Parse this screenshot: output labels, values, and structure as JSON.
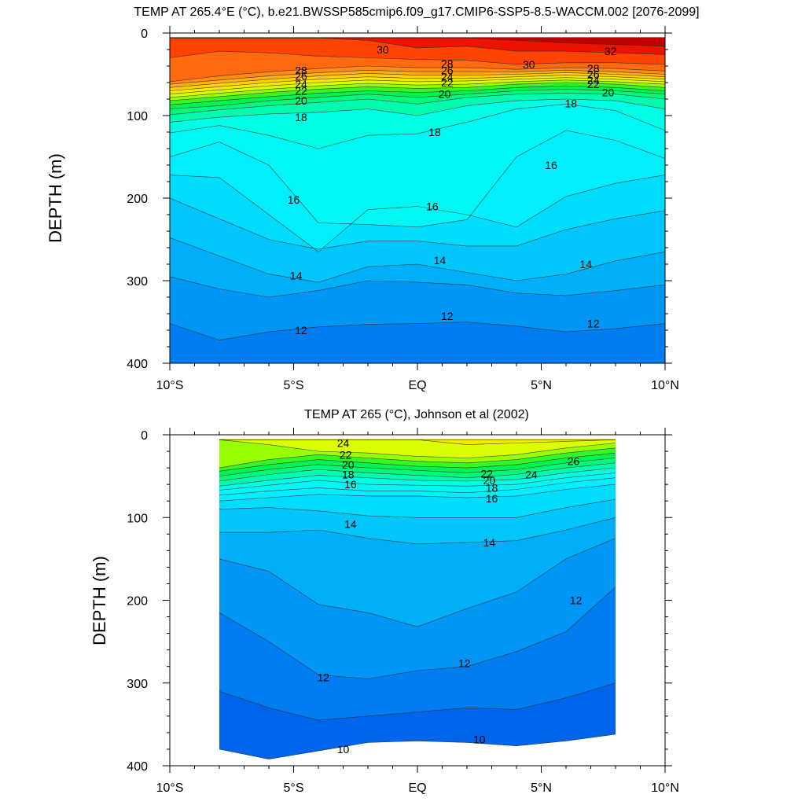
{
  "panels": [
    {
      "title": "TEMP AT 265.4°E (°C), b.e21.BWSSP585cmip6.f09_g17.CMIP6-SSP5-8.5-WACCM.002 [2076-2099]",
      "ylabel": "DEPTH (m)"
    },
    {
      "title": "TEMP AT 265 (°C), Johnson et al (2002)",
      "ylabel": "DEPTH (m)"
    }
  ],
  "chart_data": [
    {
      "type": "contour",
      "title": "TEMP AT 265.4°E (°C), b.e21.BWSSP585cmip6.f09_g17.CMIP6-SSP5-8.5-WACCM.002 [2076-2099]",
      "xlabel": "",
      "ylabel": "DEPTH (m)",
      "x_ticks": [
        "10°S",
        "5°S",
        "EQ",
        "5°N",
        "10°N"
      ],
      "x_tick_values": [
        -10,
        -5,
        0,
        5,
        10
      ],
      "y_ticks": [
        "0",
        "100",
        "200",
        "300",
        "400"
      ],
      "y_tick_values": [
        0,
        100,
        200,
        300,
        400
      ],
      "xlim": [
        -10,
        10
      ],
      "ylim": [
        400,
        0
      ],
      "y_reversed": true,
      "data_extent_x": [
        -10,
        10
      ],
      "data_extent_y": [
        400,
        5
      ],
      "contour_interval": 1,
      "contour_levels": [
        11,
        12,
        13,
        14,
        15,
        16,
        17,
        18,
        19,
        20,
        21,
        22,
        23,
        24,
        25,
        26,
        27,
        28,
        29,
        30,
        31,
        32
      ],
      "x_nodes": [
        -10,
        -8,
        -6,
        -4,
        -2,
        0,
        2,
        4,
        6,
        8,
        10
      ],
      "isotherm_depths": [
        {
          "level": 11,
          "depths": [
            402,
            402,
            402,
            402,
            402,
            402,
            402,
            402,
            402,
            402,
            402
          ]
        },
        {
          "level": 12,
          "depths": [
            352,
            372,
            362,
            356,
            353,
            352,
            350,
            355,
            362,
            358,
            352
          ]
        },
        {
          "level": 13,
          "depths": [
            295,
            310,
            320,
            312,
            300,
            302,
            305,
            315,
            318,
            312,
            305
          ]
        },
        {
          "level": 14,
          "depths": [
            248,
            270,
            292,
            302,
            283,
            280,
            290,
            300,
            292,
            276,
            265
          ]
        },
        {
          "level": 15,
          "depths": [
            200,
            225,
            250,
            262,
            252,
            252,
            258,
            258,
            238,
            225,
            215
          ]
        },
        {
          "level": 16,
          "depths": [
            172,
            175,
            220,
            265,
            214,
            210,
            220,
            235,
            198,
            182,
            172
          ]
        },
        {
          "level": 17,
          "depths": [
            150,
            132,
            160,
            230,
            232,
            235,
            226,
            150,
            118,
            130,
            152
          ]
        },
        {
          "level": 18,
          "depths": [
            121,
            112,
            124,
            140,
            124,
            122,
            108,
            92,
            86,
            94,
            118
          ]
        },
        {
          "level": 19,
          "depths": [
            108,
            102,
            98,
            96,
            92,
            100,
            88,
            82,
            80,
            82,
            92
          ]
        },
        {
          "level": 20,
          "depths": [
            99,
            93,
            88,
            84,
            80,
            86,
            78,
            74,
            73,
            74,
            80
          ]
        },
        {
          "level": 21,
          "depths": [
            92,
            88,
            82,
            78,
            74,
            78,
            74,
            70,
            68,
            70,
            74
          ]
        },
        {
          "level": 22,
          "depths": [
            87,
            82,
            77,
            73,
            70,
            72,
            70,
            66,
            64,
            66,
            70
          ]
        },
        {
          "level": 23,
          "depths": [
            82,
            77,
            72,
            68,
            65,
            67,
            66,
            62,
            60,
            62,
            66
          ]
        },
        {
          "level": 24,
          "depths": [
            78,
            73,
            68,
            64,
            61,
            63,
            62,
            59,
            57,
            59,
            62
          ]
        },
        {
          "level": 25,
          "depths": [
            74,
            69,
            64,
            60,
            57,
            59,
            58,
            56,
            54,
            56,
            59
          ]
        },
        {
          "level": 26,
          "depths": [
            70,
            65,
            60,
            56,
            53,
            55,
            55,
            53,
            51,
            53,
            56
          ]
        },
        {
          "level": 27,
          "depths": [
            66,
            61,
            56,
            52,
            49,
            51,
            51,
            50,
            48,
            50,
            53
          ]
        },
        {
          "level": 28,
          "depths": [
            62,
            57,
            52,
            48,
            45,
            47,
            47,
            47,
            45,
            47,
            50
          ]
        },
        {
          "level": 29,
          "depths": [
            59,
            52,
            47,
            43,
            40,
            42,
            42,
            44,
            42,
            43,
            46
          ]
        },
        {
          "level": 30,
          "depths": [
            30,
            22,
            24,
            28,
            30,
            32,
            33,
            38,
            36,
            36,
            38
          ]
        },
        {
          "level": 31,
          "depths": [
            6,
            6,
            6,
            6,
            9,
            18,
            16,
            22,
            22,
            24,
            26
          ]
        },
        {
          "level": 32,
          "depths": [
            6,
            6,
            6,
            6,
            6,
            6,
            6,
            9,
            12,
            14,
            16
          ]
        }
      ],
      "contour_labels": [
        {
          "text": "30",
          "x": -1.4,
          "y": 20
        },
        {
          "text": "32",
          "x": 7.8,
          "y": 22
        },
        {
          "text": "28",
          "x": -4.7,
          "y": 45
        },
        {
          "text": "26",
          "x": -4.7,
          "y": 52
        },
        {
          "text": "24",
          "x": -4.7,
          "y": 62
        },
        {
          "text": "22",
          "x": -4.7,
          "y": 70
        },
        {
          "text": "20",
          "x": -4.7,
          "y": 82
        },
        {
          "text": "28",
          "x": 1.2,
          "y": 37
        },
        {
          "text": "26",
          "x": 1.2,
          "y": 45
        },
        {
          "text": "24",
          "x": 1.2,
          "y": 53
        },
        {
          "text": "22",
          "x": 1.2,
          "y": 60
        },
        {
          "text": "20",
          "x": 1.1,
          "y": 74
        },
        {
          "text": "30",
          "x": 4.5,
          "y": 38
        },
        {
          "text": "28",
          "x": 7.1,
          "y": 43
        },
        {
          "text": "26",
          "x": 7.1,
          "y": 50
        },
        {
          "text": "24",
          "x": 7.1,
          "y": 57
        },
        {
          "text": "22",
          "x": 7.1,
          "y": 62
        },
        {
          "text": "20",
          "x": 7.7,
          "y": 72
        },
        {
          "text": "18",
          "x": 6.2,
          "y": 85
        },
        {
          "text": "18",
          "x": -4.7,
          "y": 102
        },
        {
          "text": "18",
          "x": 0.7,
          "y": 120
        },
        {
          "text": "16",
          "x": 5.4,
          "y": 160
        },
        {
          "text": "16",
          "x": -5.0,
          "y": 202
        },
        {
          "text": "16",
          "x": 0.6,
          "y": 210
        },
        {
          "text": "14",
          "x": 0.9,
          "y": 275
        },
        {
          "text": "14",
          "x": -4.9,
          "y": 294
        },
        {
          "text": "14",
          "x": 6.8,
          "y": 280
        },
        {
          "text": "12",
          "x": -4.7,
          "y": 360
        },
        {
          "text": "12",
          "x": 1.2,
          "y": 343
        },
        {
          "text": "12",
          "x": 7.1,
          "y": 352
        }
      ]
    },
    {
      "type": "contour",
      "title": "TEMP AT 265 (°C), Johnson et al (2002)",
      "xlabel": "",
      "ylabel": "DEPTH (m)",
      "x_ticks": [
        "10°S",
        "5°S",
        "EQ",
        "5°N",
        "10°N"
      ],
      "x_tick_values": [
        -10,
        -5,
        0,
        5,
        10
      ],
      "y_ticks": [
        "0",
        "100",
        "200",
        "300",
        "400"
      ],
      "y_tick_values": [
        0,
        100,
        200,
        300,
        400
      ],
      "xlim": [
        -10,
        10
      ],
      "ylim": [
        400,
        0
      ],
      "y_reversed": true,
      "data_extent_x": [
        -8,
        8
      ],
      "data_extent_y": [
        400,
        5
      ],
      "contour_interval": 1,
      "contour_levels": [
        10,
        11,
        12,
        13,
        14,
        15,
        16,
        17,
        18,
        19,
        20,
        21,
        22,
        23,
        24,
        25,
        26
      ],
      "x_nodes": [
        -8,
        -6,
        -4,
        -2,
        0,
        2,
        4,
        6,
        8
      ],
      "isotherm_depths": [
        {
          "level": 10,
          "depths": [
            380,
            392,
            382,
            372,
            370,
            372,
            376,
            370,
            362
          ]
        },
        {
          "level": 11,
          "depths": [
            310,
            330,
            345,
            340,
            335,
            330,
            332,
            318,
            300
          ]
        },
        {
          "level": 12,
          "depths": [
            215,
            250,
            290,
            295,
            285,
            280,
            262,
            238,
            184
          ]
        },
        {
          "level": 13,
          "depths": [
            150,
            165,
            205,
            215,
            232,
            210,
            190,
            150,
            125
          ]
        },
        {
          "level": 14,
          "depths": [
            118,
            118,
            115,
            125,
            132,
            130,
            128,
            115,
            100
          ]
        },
        {
          "level": 15,
          "depths": [
            90,
            88,
            92,
            98,
            100,
            100,
            100,
            88,
            78
          ]
        },
        {
          "level": 16,
          "depths": [
            80,
            76,
            72,
            74,
            74,
            76,
            74,
            66,
            60
          ]
        },
        {
          "level": 17,
          "depths": [
            73,
            68,
            64,
            68,
            68,
            70,
            66,
            58,
            52
          ]
        },
        {
          "level": 18,
          "depths": [
            67,
            61,
            55,
            60,
            61,
            62,
            60,
            52,
            46
          ]
        },
        {
          "level": 19,
          "depths": [
            62,
            55,
            49,
            52,
            55,
            56,
            54,
            46,
            40
          ]
        },
        {
          "level": 20,
          "depths": [
            56,
            48,
            42,
            46,
            49,
            52,
            48,
            40,
            34
          ]
        },
        {
          "level": 21,
          "depths": [
            50,
            42,
            36,
            40,
            43,
            46,
            42,
            34,
            28
          ]
        },
        {
          "level": 22,
          "depths": [
            44,
            36,
            30,
            34,
            38,
            40,
            36,
            28,
            22
          ]
        },
        {
          "level": 23,
          "depths": [
            40,
            30,
            24,
            28,
            32,
            34,
            30,
            22,
            16
          ]
        },
        {
          "level": 24,
          "depths": [
            6,
            12,
            20,
            22,
            26,
            28,
            24,
            16,
            10
          ]
        },
        {
          "level": 25,
          "depths": [
            6,
            6,
            6,
            6,
            6,
            12,
            10,
            8,
            6
          ]
        },
        {
          "level": 26,
          "depths": [
            6,
            6,
            6,
            6,
            6,
            6,
            6,
            6,
            6
          ]
        }
      ],
      "contour_labels": [
        {
          "text": "24",
          "x": -3.0,
          "y": 10
        },
        {
          "text": "22",
          "x": -2.9,
          "y": 24
        },
        {
          "text": "20",
          "x": -2.8,
          "y": 36
        },
        {
          "text": "18",
          "x": -2.8,
          "y": 48
        },
        {
          "text": "16",
          "x": -2.7,
          "y": 60
        },
        {
          "text": "22",
          "x": 2.8,
          "y": 47
        },
        {
          "text": "20",
          "x": 2.9,
          "y": 55
        },
        {
          "text": "18",
          "x": 3.0,
          "y": 64
        },
        {
          "text": "16",
          "x": 3.0,
          "y": 77
        },
        {
          "text": "24",
          "x": 4.6,
          "y": 48
        },
        {
          "text": "26",
          "x": 6.3,
          "y": 32
        },
        {
          "text": "14",
          "x": -2.7,
          "y": 108
        },
        {
          "text": "14",
          "x": 2.9,
          "y": 130
        },
        {
          "text": "12",
          "x": 6.4,
          "y": 200
        },
        {
          "text": "12",
          "x": 1.9,
          "y": 276
        },
        {
          "text": "12",
          "x": -3.8,
          "y": 293
        },
        {
          "text": "10",
          "x": -3.0,
          "y": 380
        },
        {
          "text": "10",
          "x": 2.5,
          "y": 368
        }
      ]
    }
  ]
}
